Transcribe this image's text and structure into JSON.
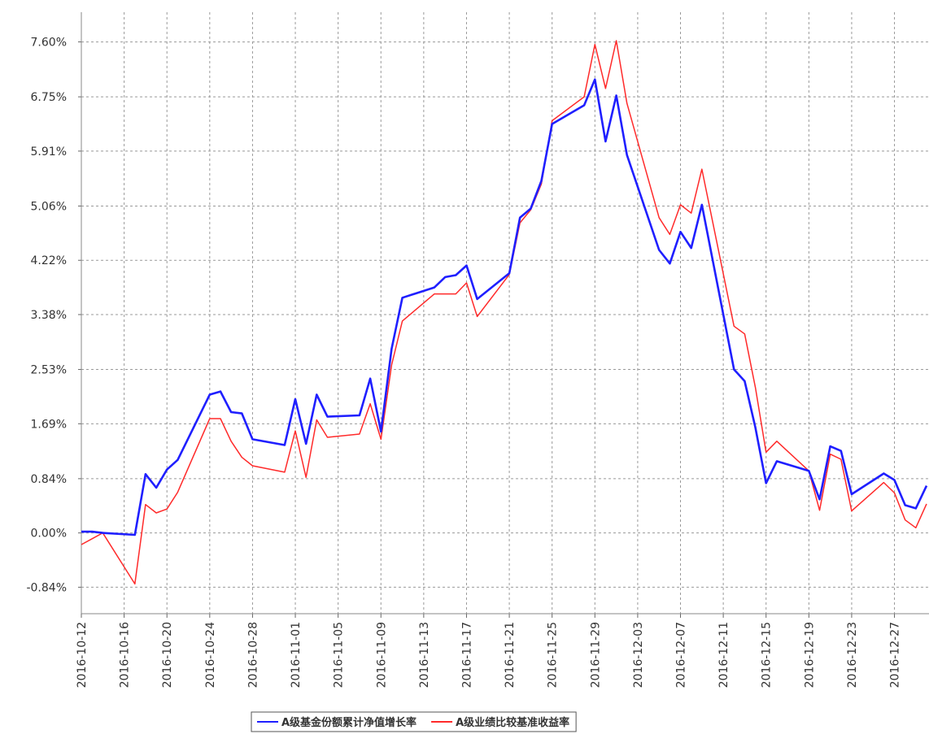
{
  "chart_data": {
    "type": "line",
    "x": [
      "2016-10-12",
      "2016-10-13",
      "2016-10-14",
      "2016-10-17",
      "2016-10-18",
      "2016-10-19",
      "2016-10-20",
      "2016-10-21",
      "2016-10-24",
      "2016-10-25",
      "2016-10-26",
      "2016-10-27",
      "2016-10-28",
      "2016-10-31",
      "2016-11-01",
      "2016-11-02",
      "2016-11-03",
      "2016-11-04",
      "2016-11-07",
      "2016-11-08",
      "2016-11-09",
      "2016-11-10",
      "2016-11-11",
      "2016-11-14",
      "2016-11-15",
      "2016-11-16",
      "2016-11-17",
      "2016-11-18",
      "2016-11-21",
      "2016-11-22",
      "2016-11-23",
      "2016-11-24",
      "2016-11-25",
      "2016-11-28",
      "2016-11-29",
      "2016-11-30",
      "2016-12-01",
      "2016-12-02",
      "2016-12-05",
      "2016-12-06",
      "2016-12-07",
      "2016-12-08",
      "2016-12-09",
      "2016-12-12",
      "2016-12-13",
      "2016-12-14",
      "2016-12-15",
      "2016-12-16",
      "2016-12-19",
      "2016-12-20",
      "2016-12-21",
      "2016-12-22",
      "2016-12-23",
      "2016-12-26",
      "2016-12-27",
      "2016-12-28",
      "2016-12-29",
      "2016-12-30"
    ],
    "series": [
      {
        "name": "A级基金份额累计净值增长率",
        "color": "#1f1fff",
        "values": [
          0.02,
          0.02,
          0.0,
          -0.03,
          0.91,
          0.7,
          0.98,
          1.13,
          2.14,
          2.19,
          1.87,
          1.85,
          1.45,
          1.36,
          2.07,
          1.38,
          2.14,
          1.8,
          1.82,
          2.39,
          1.57,
          2.85,
          3.64,
          3.8,
          3.96,
          3.99,
          4.14,
          3.62,
          4.02,
          4.88,
          5.02,
          5.45,
          6.33,
          6.62,
          7.02,
          6.06,
          6.77,
          5.85,
          4.38,
          4.17,
          4.66,
          4.41,
          5.08,
          2.53,
          2.35,
          1.63,
          0.77,
          1.11,
          0.96,
          0.52,
          1.34,
          1.27,
          0.6,
          0.92,
          0.82,
          0.43,
          0.38,
          0.73
        ]
      },
      {
        "name": "A级业绩比较基准收益率",
        "color": "#ff2a2a",
        "values": [
          -0.18,
          -0.09,
          0.0,
          -0.79,
          0.44,
          0.31,
          0.37,
          0.63,
          1.77,
          1.77,
          1.42,
          1.17,
          1.04,
          0.94,
          1.58,
          0.86,
          1.75,
          1.48,
          1.53,
          2.0,
          1.45,
          2.6,
          3.28,
          3.7,
          3.7,
          3.7,
          3.87,
          3.35,
          4.0,
          4.8,
          5.0,
          5.4,
          6.38,
          6.75,
          7.56,
          6.88,
          7.62,
          6.65,
          4.88,
          4.62,
          5.08,
          4.95,
          5.63,
          3.2,
          3.08,
          2.25,
          1.25,
          1.42,
          0.96,
          0.35,
          1.22,
          1.14,
          0.34,
          0.78,
          0.62,
          0.2,
          0.08,
          0.45
        ]
      }
    ],
    "xlim": [
      "2016-10-12",
      "2016-12-30"
    ],
    "xticks": [
      "2016-10-12",
      "2016-10-16",
      "2016-10-20",
      "2016-10-24",
      "2016-10-28",
      "2016-11-01",
      "2016-11-05",
      "2016-11-09",
      "2016-11-13",
      "2016-11-17",
      "2016-11-21",
      "2016-11-25",
      "2016-11-29",
      "2016-12-03",
      "2016-12-07",
      "2016-12-11",
      "2016-12-15",
      "2016-12-19",
      "2016-12-23",
      "2016-12-27"
    ],
    "ylim": [
      -1.25,
      8.06
    ],
    "yticks": [
      {
        "value": -0.84,
        "label": "-0.84%"
      },
      {
        "value": 0,
        "label": "0.00%"
      },
      {
        "value": 0.84,
        "label": "0.84%"
      },
      {
        "value": 1.69,
        "label": "1.69%"
      },
      {
        "value": 2.53,
        "label": "2.53%"
      },
      {
        "value": 3.38,
        "label": "3.38%"
      },
      {
        "value": 4.22,
        "label": "4.22%"
      },
      {
        "value": 5.06,
        "label": "5.06%"
      },
      {
        "value": 5.91,
        "label": "5.91%"
      },
      {
        "value": 6.75,
        "label": "6.75%"
      },
      {
        "value": 7.6,
        "label": "7.60%"
      }
    ],
    "grid": true
  }
}
